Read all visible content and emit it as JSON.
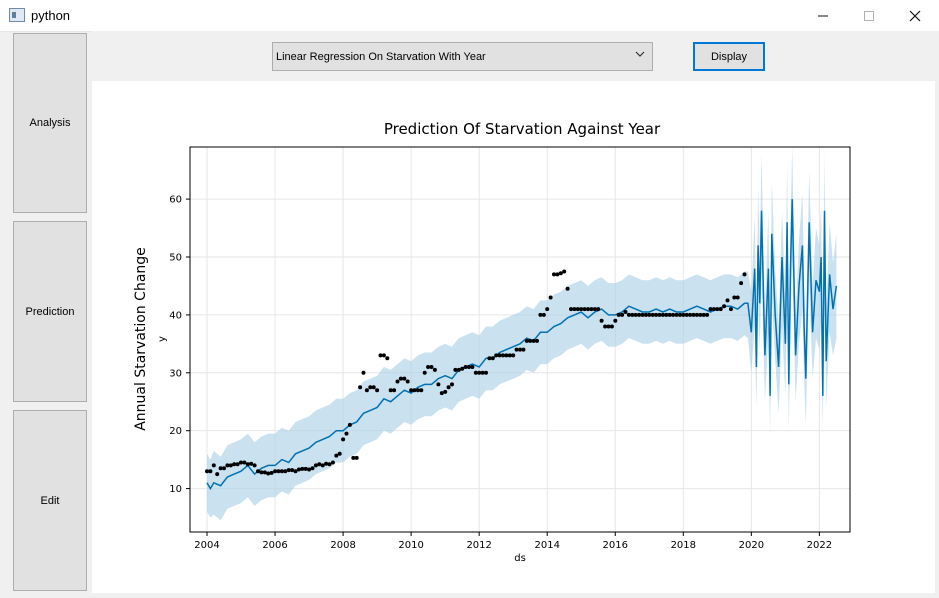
{
  "window": {
    "title": "python",
    "min_icon": "minimize-icon",
    "max_icon": "maximize-icon",
    "close_icon": "close-icon"
  },
  "sidebar": {
    "items": [
      {
        "label": "Analysis"
      },
      {
        "label": "Prediction"
      },
      {
        "label": "Edit"
      }
    ]
  },
  "toolbar": {
    "dropdown_value": "Linear Regression On Starvation With Year",
    "display_label": "Display"
  },
  "colors": {
    "accent": "#0078d7",
    "forecast_line": "#0072b2",
    "interval": "#add1e6",
    "points": "#000000"
  },
  "chart_data": {
    "type": "line",
    "title": "Prediction Of Starvation Against Year",
    "ylabel_outer": "Annual Starvation Change",
    "ylabel": "y",
    "xlabel": "ds",
    "xlim": [
      2003.5,
      2022.9
    ],
    "ylim": [
      2.5,
      69
    ],
    "x_ticks": [
      "2004",
      "2006",
      "2008",
      "2010",
      "2012",
      "2014",
      "2016",
      "2018",
      "2020",
      "2022"
    ],
    "y_ticks": [
      "10",
      "20",
      "30",
      "40",
      "50",
      "60"
    ],
    "grid": true,
    "series": [
      {
        "kind": "scatter",
        "points": [
          [
            2004.0,
            13
          ],
          [
            2004.1,
            13
          ],
          [
            2004.2,
            14
          ],
          [
            2004.3,
            12.5
          ],
          [
            2004.4,
            13.5
          ],
          [
            2004.5,
            13.5
          ],
          [
            2004.6,
            14
          ],
          [
            2004.7,
            14
          ],
          [
            2004.8,
            14.2
          ],
          [
            2004.9,
            14.2
          ],
          [
            2005.0,
            14.5
          ],
          [
            2005.1,
            14.5
          ],
          [
            2005.2,
            14.2
          ],
          [
            2005.3,
            14.3
          ],
          [
            2005.4,
            14
          ],
          [
            2005.5,
            13
          ],
          [
            2005.6,
            12.8
          ],
          [
            2005.7,
            12.8
          ],
          [
            2005.8,
            12.6
          ],
          [
            2005.9,
            12.7
          ],
          [
            2006.0,
            13
          ],
          [
            2006.1,
            13
          ],
          [
            2006.2,
            13
          ],
          [
            2006.3,
            13
          ],
          [
            2006.4,
            13.2
          ],
          [
            2006.5,
            13.2
          ],
          [
            2006.6,
            13
          ],
          [
            2006.7,
            13.3
          ],
          [
            2006.8,
            13.4
          ],
          [
            2006.9,
            13.4
          ],
          [
            2007.0,
            13.3
          ],
          [
            2007.1,
            13.5
          ],
          [
            2007.2,
            14
          ],
          [
            2007.3,
            14.2
          ],
          [
            2007.4,
            14
          ],
          [
            2007.5,
            14.3
          ],
          [
            2007.6,
            14.2
          ],
          [
            2007.7,
            14.5
          ],
          [
            2007.8,
            15.7
          ],
          [
            2007.9,
            16
          ],
          [
            2008.0,
            18.5
          ],
          [
            2008.1,
            19.5
          ],
          [
            2008.2,
            21
          ],
          [
            2008.3,
            15.3
          ],
          [
            2008.4,
            15.3
          ],
          [
            2008.5,
            27.5
          ],
          [
            2008.6,
            30
          ],
          [
            2008.7,
            27
          ],
          [
            2008.8,
            27.5
          ],
          [
            2008.9,
            27.5
          ],
          [
            2009.0,
            27
          ],
          [
            2009.1,
            33
          ],
          [
            2009.2,
            33
          ],
          [
            2009.3,
            32.5
          ],
          [
            2009.4,
            27
          ],
          [
            2009.5,
            27
          ],
          [
            2009.6,
            28.5
          ],
          [
            2009.7,
            29
          ],
          [
            2009.8,
            29
          ],
          [
            2009.9,
            28.5
          ],
          [
            2010.0,
            27
          ],
          [
            2010.1,
            27
          ],
          [
            2010.2,
            27
          ],
          [
            2010.3,
            27
          ],
          [
            2010.4,
            30
          ],
          [
            2010.5,
            31
          ],
          [
            2010.6,
            31
          ],
          [
            2010.7,
            30.5
          ],
          [
            2010.8,
            28
          ],
          [
            2010.9,
            26.5
          ],
          [
            2011.0,
            26.7
          ],
          [
            2011.1,
            27.5
          ],
          [
            2011.2,
            28
          ],
          [
            2011.3,
            30.5
          ],
          [
            2011.4,
            30.5
          ],
          [
            2011.5,
            30.7
          ],
          [
            2011.6,
            31
          ],
          [
            2011.7,
            31
          ],
          [
            2011.8,
            31
          ],
          [
            2011.9,
            30
          ],
          [
            2012.0,
            30
          ],
          [
            2012.1,
            30
          ],
          [
            2012.2,
            30
          ],
          [
            2012.3,
            32.5
          ],
          [
            2012.4,
            32.5
          ],
          [
            2012.5,
            33
          ],
          [
            2012.6,
            33
          ],
          [
            2012.7,
            33
          ],
          [
            2012.8,
            33
          ],
          [
            2012.9,
            33
          ],
          [
            2013.0,
            33
          ],
          [
            2013.1,
            34
          ],
          [
            2013.2,
            34
          ],
          [
            2013.3,
            34
          ],
          [
            2013.4,
            35.5
          ],
          [
            2013.5,
            35.5
          ],
          [
            2013.6,
            35.5
          ],
          [
            2013.7,
            35.5
          ],
          [
            2013.8,
            40
          ],
          [
            2013.9,
            40
          ],
          [
            2014.0,
            41
          ],
          [
            2014.1,
            43
          ],
          [
            2014.2,
            47
          ],
          [
            2014.3,
            47
          ],
          [
            2014.4,
            47.2
          ],
          [
            2014.5,
            47.5
          ],
          [
            2014.6,
            44.5
          ],
          [
            2014.7,
            41
          ],
          [
            2014.8,
            41
          ],
          [
            2014.9,
            41
          ],
          [
            2015.0,
            41
          ],
          [
            2015.1,
            41
          ],
          [
            2015.2,
            41
          ],
          [
            2015.3,
            41
          ],
          [
            2015.4,
            41
          ],
          [
            2015.5,
            41
          ],
          [
            2015.6,
            39
          ],
          [
            2015.7,
            38
          ],
          [
            2015.8,
            38
          ],
          [
            2015.9,
            38
          ],
          [
            2016.0,
            39
          ],
          [
            2016.1,
            40
          ],
          [
            2016.2,
            40
          ],
          [
            2016.3,
            40.5
          ],
          [
            2016.4,
            40
          ],
          [
            2016.5,
            40
          ],
          [
            2016.6,
            40
          ],
          [
            2016.7,
            40
          ],
          [
            2016.8,
            40
          ],
          [
            2016.9,
            40
          ],
          [
            2017.0,
            40
          ],
          [
            2017.1,
            40
          ],
          [
            2017.2,
            40
          ],
          [
            2017.3,
            40
          ],
          [
            2017.4,
            40
          ],
          [
            2017.5,
            40
          ],
          [
            2017.6,
            40
          ],
          [
            2017.7,
            40
          ],
          [
            2017.8,
            40
          ],
          [
            2017.9,
            40
          ],
          [
            2018.0,
            40
          ],
          [
            2018.1,
            40
          ],
          [
            2018.2,
            40
          ],
          [
            2018.3,
            40
          ],
          [
            2018.4,
            40
          ],
          [
            2018.5,
            40
          ],
          [
            2018.6,
            40
          ],
          [
            2018.7,
            40
          ],
          [
            2018.8,
            41
          ],
          [
            2018.9,
            41
          ],
          [
            2019.0,
            41
          ],
          [
            2019.1,
            41
          ],
          [
            2019.2,
            41.5
          ],
          [
            2019.3,
            42.5
          ],
          [
            2019.4,
            41
          ],
          [
            2019.5,
            43
          ],
          [
            2019.6,
            43
          ],
          [
            2019.7,
            45.5
          ],
          [
            2019.8,
            47
          ]
        ]
      },
      {
        "kind": "forecast",
        "x": [
          2004.0,
          2004.1,
          2004.2,
          2004.4,
          2004.6,
          2004.8,
          2005.0,
          2005.2,
          2005.4,
          2005.6,
          2005.8,
          2006.0,
          2006.2,
          2006.4,
          2006.6,
          2006.8,
          2007.0,
          2007.2,
          2007.4,
          2007.6,
          2007.8,
          2008.0,
          2008.2,
          2008.4,
          2008.6,
          2008.8,
          2009.0,
          2009.2,
          2009.4,
          2009.6,
          2009.8,
          2010.0,
          2010.2,
          2010.4,
          2010.6,
          2010.8,
          2011.0,
          2011.2,
          2011.4,
          2011.6,
          2011.8,
          2012.0,
          2012.2,
          2012.4,
          2012.6,
          2012.8,
          2013.0,
          2013.2,
          2013.4,
          2013.6,
          2013.8,
          2014.0,
          2014.2,
          2014.4,
          2014.6,
          2014.8,
          2015.0,
          2015.2,
          2015.4,
          2015.6,
          2015.8,
          2016.0,
          2016.2,
          2016.4,
          2016.6,
          2016.8,
          2017.0,
          2017.2,
          2017.4,
          2017.6,
          2017.8,
          2018.0,
          2018.2,
          2018.4,
          2018.6,
          2018.8,
          2019.0,
          2019.2,
          2019.4,
          2019.6,
          2019.8,
          2019.9,
          2020.0,
          2020.1,
          2020.15,
          2020.2,
          2020.25,
          2020.3,
          2020.4,
          2020.5,
          2020.55,
          2020.6,
          2020.7,
          2020.8,
          2020.9,
          2021.0,
          2021.05,
          2021.1,
          2021.15,
          2021.2,
          2021.3,
          2021.4,
          2021.5,
          2021.55,
          2021.6,
          2021.7,
          2021.8,
          2021.9,
          2022.0,
          2022.05,
          2022.1,
          2022.15,
          2022.2,
          2022.3,
          2022.4,
          2022.5
        ],
        "yhat": [
          11,
          10,
          11,
          10.5,
          12,
          12.5,
          13,
          14,
          12.5,
          13.5,
          14,
          14,
          15,
          14.5,
          16,
          16.5,
          17,
          18,
          18.5,
          19,
          20,
          20,
          21,
          21.5,
          23,
          23.5,
          24,
          25.5,
          25,
          26,
          27,
          26.5,
          27.5,
          28,
          28,
          29,
          29.5,
          29,
          30.5,
          31,
          31.5,
          31,
          32.5,
          32.5,
          33.5,
          34,
          34.5,
          35,
          36,
          35.5,
          37,
          37,
          38,
          38.5,
          39.5,
          40,
          40.5,
          39.5,
          40.5,
          41,
          40,
          40,
          40.5,
          41.5,
          41,
          40.5,
          40.5,
          41,
          40.5,
          41,
          40.5,
          40.5,
          41,
          41.5,
          41,
          40.5,
          41,
          41.5,
          41.5,
          41,
          42,
          42,
          37,
          48,
          31,
          52,
          42,
          58,
          33,
          48,
          26,
          54,
          40,
          31,
          50,
          35,
          56,
          28,
          48,
          60,
          33,
          45,
          52,
          38,
          29,
          56,
          37,
          46,
          44,
          50,
          26,
          58,
          32,
          47,
          41,
          45
        ],
        "lower": [
          6,
          5,
          5.5,
          4.5,
          6.5,
          7,
          7.5,
          8.5,
          7,
          8,
          8.5,
          8.5,
          9.5,
          9,
          10.5,
          11,
          11.5,
          12.5,
          13,
          13.5,
          14.5,
          14.5,
          15.5,
          16,
          17.5,
          18,
          18.5,
          20,
          19.5,
          20.5,
          21.5,
          21,
          22,
          22.5,
          22.5,
          23.5,
          24,
          23.5,
          25,
          25.5,
          26,
          25.5,
          27,
          27,
          28,
          28.5,
          29,
          29.5,
          30.5,
          30,
          31.5,
          31.5,
          32.5,
          33,
          34,
          34.5,
          35,
          34,
          35,
          35.5,
          34.5,
          34.5,
          35,
          36,
          35.5,
          35,
          35,
          35.5,
          35,
          35.5,
          35,
          35,
          35.5,
          36,
          35.5,
          35,
          35.5,
          36,
          36,
          35.5,
          36.5,
          36,
          30,
          38,
          24,
          42,
          34,
          48,
          25,
          37,
          19,
          43,
          32,
          23,
          38,
          26,
          45,
          20,
          37,
          49,
          25,
          35,
          41,
          29,
          21,
          46,
          29,
          36,
          34,
          39,
          20,
          46,
          24,
          37,
          33,
          36
        ],
        "upper": [
          16,
          15,
          16.5,
          15.5,
          17.5,
          18,
          18.5,
          19.5,
          18,
          19,
          19.5,
          19.5,
          20.5,
          20,
          21.5,
          22,
          22.5,
          23.5,
          24,
          24.5,
          25.5,
          25.5,
          26.5,
          27,
          28.5,
          29,
          29.5,
          31,
          30.5,
          31.5,
          32.5,
          32,
          33,
          33.5,
          33.5,
          34.5,
          35,
          34.5,
          36,
          36.5,
          37,
          36.5,
          38,
          38,
          39,
          39.5,
          40,
          40.5,
          41.5,
          41,
          42.5,
          42.5,
          43.5,
          44,
          45,
          45.5,
          46,
          45,
          46,
          46.5,
          45.5,
          45.5,
          46,
          47,
          46.5,
          46,
          46,
          46.5,
          46,
          46.5,
          46,
          46,
          46.5,
          47,
          46.5,
          46,
          46.5,
          47,
          47,
          46.5,
          47.5,
          47.5,
          44,
          57,
          38,
          62,
          50,
          68,
          40,
          58,
          33,
          63,
          48,
          38,
          58,
          43,
          66,
          36,
          56,
          69,
          40,
          53,
          61,
          46,
          36,
          65,
          45,
          55,
          52,
          59,
          32,
          68,
          40,
          56,
          49,
          54
        ]
      }
    ]
  }
}
